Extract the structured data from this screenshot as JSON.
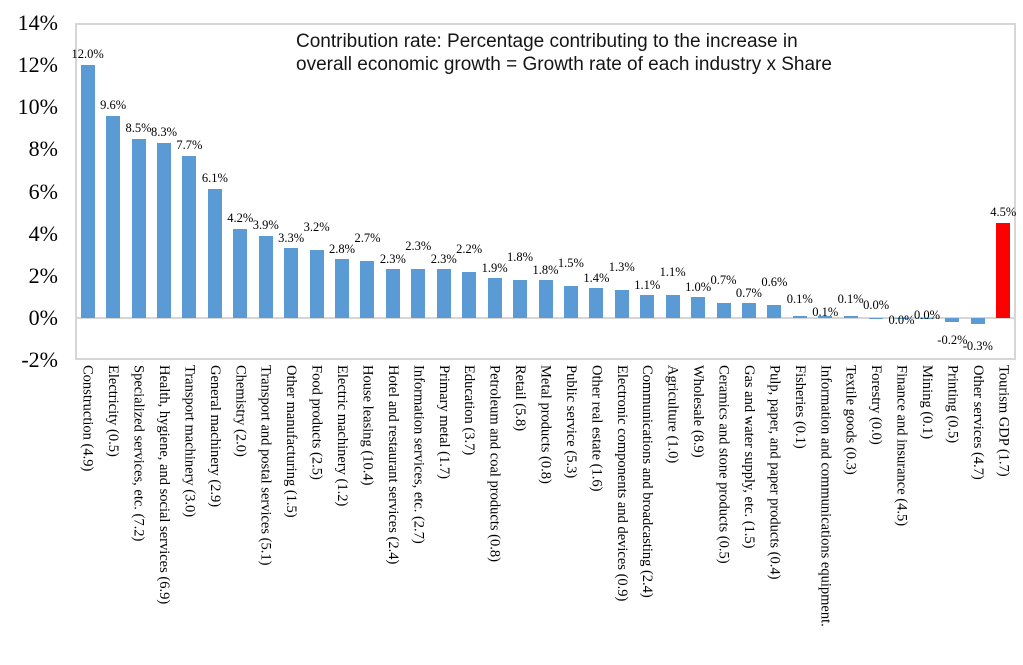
{
  "annotation": {
    "line1": "Contribution rate: Percentage contributing to the increase in",
    "line2": "overall economic growth = Growth rate of each industry x Share"
  },
  "colors": {
    "bar_default": "#5b9bd5",
    "bar_highlight": "#ff0000",
    "plot_border": "#d6d6d6",
    "axis_line": "#d6d6d6",
    "text": "#000000"
  },
  "chart_data": {
    "type": "bar",
    "title": "",
    "xlabel": "",
    "ylabel": "",
    "ylim": [
      -2,
      14
    ],
    "ytick_step": 2,
    "ytick_labels": [
      "14%",
      "12%",
      "10%",
      "8%",
      "6%",
      "4%",
      "2%",
      "0%",
      "-2%"
    ],
    "grid": false,
    "legend": null,
    "highlight_index": 36,
    "categories": [
      "Construction (4.9)",
      "Electricity (0.5)",
      "Specialized services, etc. (7.2)",
      "Health, hygiene, and social services (6.9)",
      "Transport machinery (3.0)",
      "General machinery (2.9)",
      "Chemistry (2.0)",
      "Transport and postal services (5.1)",
      "Other manufacturing (1.5)",
      "Food products (2.5)",
      "Electric machinery (1.2)",
      "House leasing (10.4)",
      "Hotel and restaurant services (2.4)",
      "Information services, etc. (2.7)",
      "Primary metal (1.7)",
      "Education (3.7)",
      "Petroleum and coal products (0.8)",
      "Retail (5.8)",
      "Metal products (0.8)",
      "Public service (5.3)",
      "Other real estate (1.6)",
      "Electronic components and devices (0.9)",
      "Communications and broadcasting (2.4)",
      "Agriculture (1.0)",
      "Wholesale (8.9)",
      "Ceramics and stone products (0.5)",
      "Gas and water supply, etc. (1.5)",
      "Pulp, paper, and paper products (0.4)",
      "Fisheries (0.1)",
      "Information and communications equipment.",
      "Textile goods (0.3)",
      "Forestry (0.0)",
      "Finance and insurance (4.5)",
      "Mining (0.1)",
      "Printing (0.5)",
      "Other services (4.7)",
      "Tourism GDP (1.7)"
    ],
    "values": [
      12.0,
      9.6,
      8.5,
      8.3,
      7.7,
      6.1,
      4.2,
      3.9,
      3.3,
      3.2,
      2.8,
      2.7,
      2.3,
      2.3,
      2.3,
      2.2,
      1.9,
      1.8,
      1.8,
      1.5,
      1.4,
      1.3,
      1.1,
      1.1,
      1.0,
      0.7,
      0.7,
      0.6,
      0.1,
      0.1,
      0.1,
      0.0,
      0.0,
      0.0,
      -0.2,
      -0.3,
      4.5
    ],
    "value_labels": [
      "12.0%",
      "9.6%",
      "8.5%",
      "8.3%",
      "7.7%",
      "6.1%",
      "4.2%",
      "3.9%",
      "3.3%",
      "3.2%",
      "2.8%",
      "2.7%",
      "2.3%",
      "2.3%",
      "2.3%",
      "2.2%",
      "1.9%",
      "1.8%",
      "1.8%",
      "1.5%",
      "1.4%",
      "1.3%",
      "1.1%",
      "1.1%",
      "1.0%",
      "0.7%",
      "0.7%",
      "0.6%",
      "0.1%",
      "0.1%",
      "0.1%",
      "0.0%",
      "0.0%",
      "0.0%",
      "-0.2%",
      "-0.3%",
      "4.5%"
    ]
  }
}
